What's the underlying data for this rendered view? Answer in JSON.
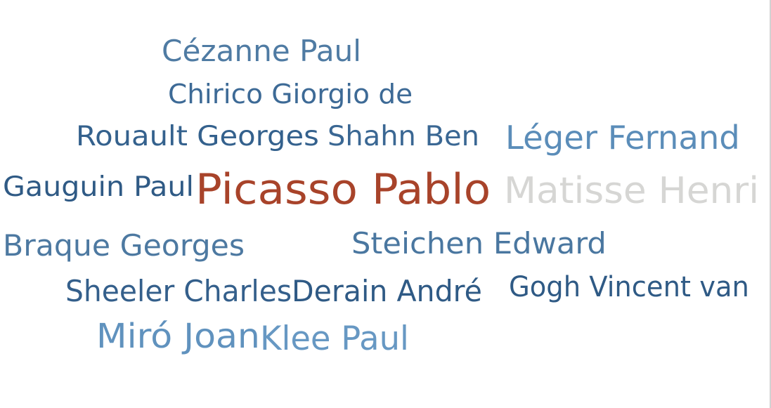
{
  "chart_data": {
    "type": "wordcloud",
    "words": [
      {
        "text": "Cézanne Paul",
        "color": "#4f7ba3"
      },
      {
        "text": "Chirico Giorgio de",
        "color": "#3d6a96"
      },
      {
        "text": "Rouault Georges",
        "color": "#34618d"
      },
      {
        "text": "Shahn Ben",
        "color": "#3a6793"
      },
      {
        "text": "Léger Fernand",
        "color": "#5b8db9"
      },
      {
        "text": "Gauguin Paul",
        "color": "#2f5a85"
      },
      {
        "text": "Picasso Pablo",
        "color": "#a8432a"
      },
      {
        "text": "Matisse Henri",
        "color": "#d6d6d4"
      },
      {
        "text": "Braque Georges",
        "color": "#4d79a1"
      },
      {
        "text": "Steichen Edward",
        "color": "#4a77a0"
      },
      {
        "text": "Sheeler Charles",
        "color": "#345f8b"
      },
      {
        "text": "Derain André",
        "color": "#2f5a85"
      },
      {
        "text": "Gogh Vincent van",
        "color": "#2f5a85"
      },
      {
        "text": "Miró Joan",
        "color": "#6092be"
      },
      {
        "text": "Klee Paul",
        "color": "#6798c3"
      }
    ]
  }
}
